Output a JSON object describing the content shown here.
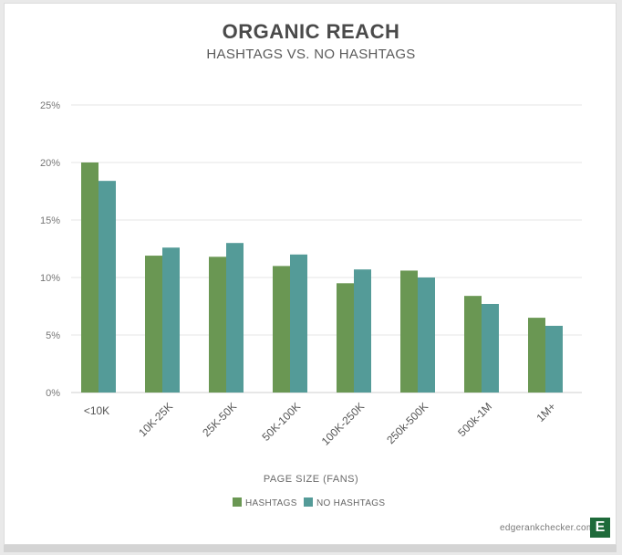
{
  "chart_data": {
    "type": "bar",
    "title": "ORGANIC REACH",
    "subtitle": "HASHTAGS VS. NO HASHTAGS",
    "xlabel": "PAGE SIZE (FANS)",
    "ylabel": "",
    "ylim": [
      0,
      25
    ],
    "yticks": [
      0,
      5,
      10,
      15,
      20,
      25
    ],
    "ytick_labels": [
      "0%",
      "5%",
      "10%",
      "15%",
      "20%",
      "25%"
    ],
    "grid": true,
    "legend_position": "bottom-center",
    "categories": [
      "<10K",
      "10K-25K",
      "25K-50K",
      "50K-100K",
      "100K-250K",
      "250k-500K",
      "500k-1M",
      "1M+"
    ],
    "series": [
      {
        "name": "HASHTAGS",
        "color": "#6a9753",
        "values": [
          20.0,
          11.9,
          11.8,
          11.0,
          9.5,
          10.6,
          8.4,
          6.5
        ]
      },
      {
        "name": "NO HASHTAGS",
        "color": "#549b98",
        "values": [
          18.4,
          12.6,
          13.0,
          12.0,
          10.7,
          10.0,
          7.7,
          5.8
        ]
      }
    ]
  },
  "footer": {
    "brand_text": "edgerankchecker.com",
    "logo_letter": "E"
  }
}
